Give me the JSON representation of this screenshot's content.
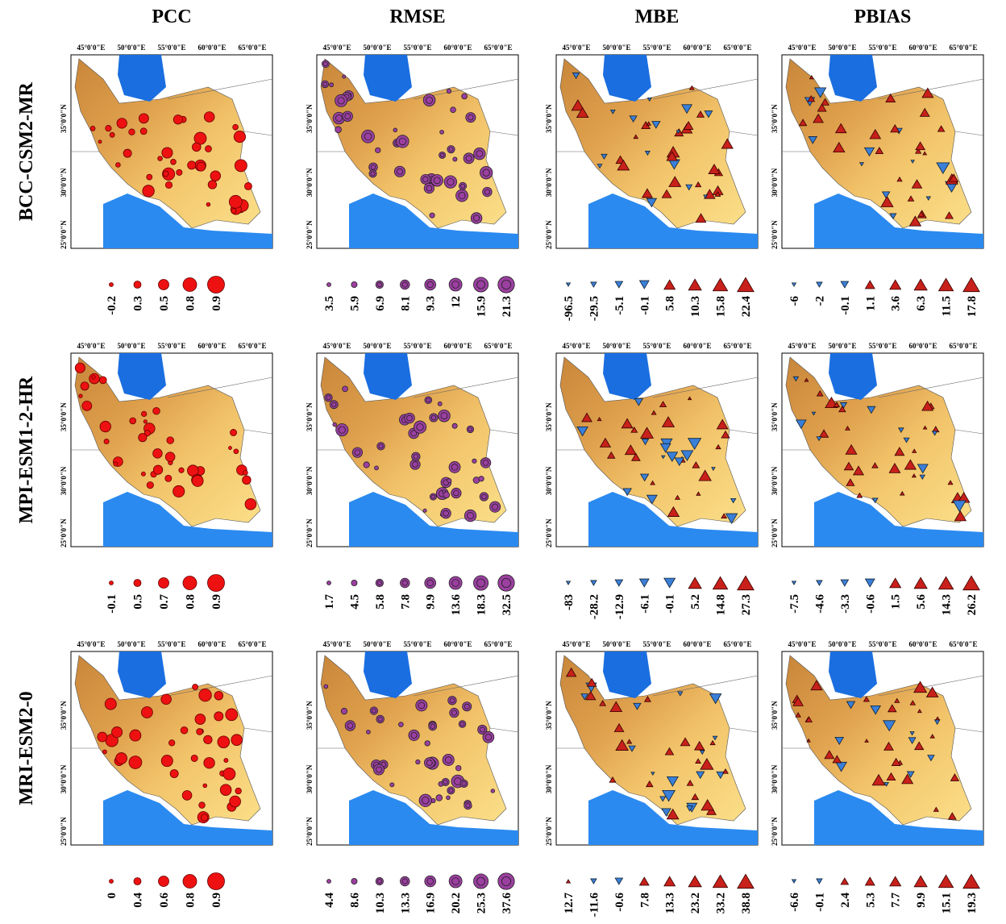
{
  "columns": [
    "PCC",
    "RMSE",
    "MBE",
    "PBIAS"
  ],
  "rows": [
    {
      "label": "BCC-CSM2-MR",
      "legends": [
        [
          "-0.2",
          "0.3",
          "0.5",
          "0.8",
          "0.9"
        ],
        [
          "3.5",
          "5.9",
          "6.9",
          "8.1",
          "9.3",
          "12",
          "15.9",
          "21.3"
        ],
        [
          "-96.5",
          "-29.5",
          "-5.1",
          "-0.1",
          "5.8",
          "10.3",
          "15.8",
          "22.4"
        ],
        [
          "-6",
          "-2",
          "-0.1",
          "1.1",
          "3.6",
          "6.3",
          "11.5",
          "17.8"
        ]
      ]
    },
    {
      "label": "MPI-ESM1-2-HR",
      "legends": [
        [
          "-0.1",
          "0.5",
          "0.7",
          "0.8",
          "0.9"
        ],
        [
          "1.7",
          "4.5",
          "5.8",
          "7.8",
          "9.9",
          "13.6",
          "18.3",
          "32.5"
        ],
        [
          "-83",
          "-28.2",
          "-12.9",
          "-6.1",
          "-0.1",
          "5.2",
          "14.8",
          "27.3"
        ],
        [
          "-7.5",
          "-4.6",
          "-3.3",
          "-0.6",
          "1.5",
          "5.6",
          "14.3",
          "26.2"
        ]
      ]
    },
    {
      "label": "MRI-ESM2-0",
      "legends": [
        [
          "0",
          "0.4",
          "0.6",
          "0.8",
          "0.9"
        ],
        [
          "4.4",
          "8.6",
          "10.3",
          "13.3",
          "16.9",
          "20.2",
          "25.3",
          "37.6"
        ],
        [
          "12.7",
          "-11.6",
          "-0.6",
          "7.8",
          "13.3",
          "23.2",
          "33.2",
          "38.8"
        ],
        [
          "-6.6",
          "-0.1",
          "2.4",
          "5.3",
          "7.7",
          "9.9",
          "15.1",
          "19.3"
        ]
      ]
    }
  ],
  "lon_labels": [
    "45°0'0\"E",
    "50°0'0\"E",
    "55°0'0\"E",
    "60°0'0\"E",
    "65°0'0\"E"
  ],
  "lat_labels": [
    "35°0'0\"N",
    "30°0'0\"N",
    "25°0'0\"N"
  ]
}
